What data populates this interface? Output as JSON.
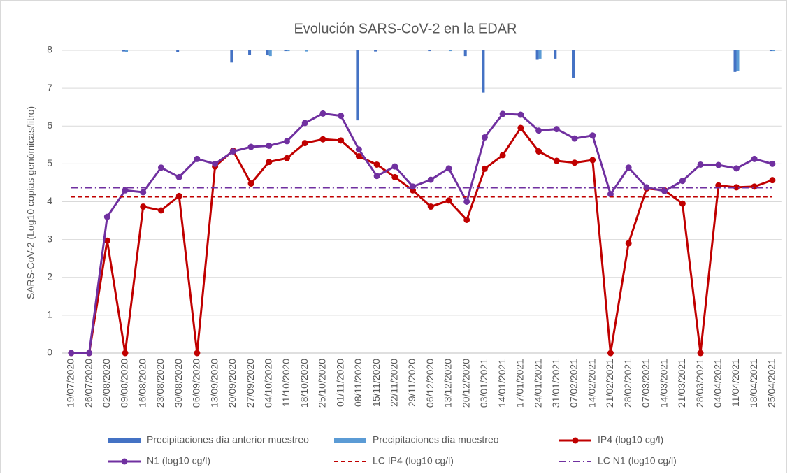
{
  "chart_data": {
    "type": "line",
    "title": "Evolución SARS-CoV-2 en la EDAR",
    "y_label": "SARS-CoV-2 (Log10 copias genómicas/litro)",
    "categories": [
      "19/07/2020",
      "26/07/2020",
      "02/08/2020",
      "09/08/2020",
      "16/08/2020",
      "23/08/2020",
      "30/08/2020",
      "06/09/2020",
      "13/09/2020",
      "20/09/2020",
      "27/09/2020",
      "04/10/2020",
      "11/10/2020",
      "18/10/2020",
      "25/10/2020",
      "01/11/2020",
      "08/11/2020",
      "15/11/2020",
      "22/11/2020",
      "29/11/2020",
      "06/12/2020",
      "13/12/2020",
      "20/12/2020",
      "03/01/2021",
      "14/01/2021",
      "17/01/2021",
      "24/01/2021",
      "31/01/2021",
      "07/02/2021",
      "14/02/2021",
      "21/02/2021",
      "28/02/2021",
      "07/03/2021",
      "14/03/2021",
      "21/03/2021",
      "28/03/2021",
      "04/04/2021",
      "11/04/2021",
      "18/04/2021",
      "25/04/2021"
    ],
    "ylim": [
      0,
      8
    ],
    "yticks": [
      0,
      1,
      2,
      3,
      4,
      5,
      6,
      7,
      8
    ],
    "grid": true,
    "y2lim": [
      0,
      8
    ],
    "y2_inverted": true,
    "series": [
      {
        "name": "Precipitaciones día anterior muestreo",
        "type": "bar",
        "axis": "y2",
        "color": "#4472c4",
        "values": [
          0,
          0,
          0,
          0.03,
          0,
          0,
          0.05,
          0,
          0,
          0.32,
          0.12,
          0.13,
          0.02,
          0,
          0,
          0,
          1.85,
          0.03,
          0,
          0,
          0.02,
          0,
          0.15,
          1.12,
          0,
          0,
          0.25,
          0.22,
          0.72,
          0,
          0,
          0,
          0,
          0,
          0,
          0,
          0,
          0.57,
          0,
          0.02
        ]
      },
      {
        "name": "Precipitaciones día muestreo",
        "type": "bar",
        "axis": "y2",
        "color": "#5b9bd5",
        "values": [
          0,
          0,
          0,
          0.05,
          0,
          0,
          0,
          0,
          0,
          0,
          0,
          0.15,
          0.02,
          0.03,
          0,
          0,
          0,
          0,
          0,
          0,
          0,
          0.02,
          0,
          0,
          0,
          0,
          0.22,
          0,
          0,
          0,
          0,
          0,
          0,
          0,
          0,
          0,
          0,
          0.55,
          0,
          0.02
        ]
      },
      {
        "name": "IP4 (log10 cg/l)",
        "type": "line",
        "marker": true,
        "color": "#c00000",
        "values": [
          0,
          0,
          2.97,
          0,
          3.87,
          3.77,
          4.15,
          0,
          4.93,
          5.35,
          4.48,
          5.05,
          5.15,
          5.55,
          5.65,
          5.62,
          5.2,
          4.98,
          4.65,
          4.3,
          3.87,
          4.03,
          3.52,
          4.87,
          5.23,
          5.95,
          5.33,
          5.08,
          5.03,
          5.1,
          0,
          2.9,
          4.35,
          4.3,
          3.95,
          0,
          4.43,
          4.38,
          4.4,
          4.57
        ]
      },
      {
        "name": "N1 (log10 cg/l)",
        "type": "line",
        "marker": true,
        "color": "#7030a0",
        "values": [
          0,
          0,
          3.6,
          4.3,
          4.25,
          4.9,
          4.65,
          5.13,
          5.0,
          5.33,
          5.45,
          5.48,
          5.6,
          6.08,
          6.33,
          6.27,
          5.38,
          4.68,
          4.93,
          4.4,
          4.58,
          4.88,
          4.0,
          5.7,
          6.32,
          6.3,
          5.88,
          5.92,
          5.67,
          5.75,
          4.2,
          4.9,
          4.38,
          4.28,
          4.55,
          4.98,
          4.97,
          4.88,
          5.13,
          5.0
        ]
      },
      {
        "name": "LC IP4 (log10 cg/l)",
        "type": "line",
        "line_style": "dashed",
        "color": "#c00000",
        "values": [
          4.13,
          4.13,
          4.13,
          4.13,
          4.13,
          4.13,
          4.13,
          4.13,
          4.13,
          4.13,
          4.13,
          4.13,
          4.13,
          4.13,
          4.13,
          4.13,
          4.13,
          4.13,
          4.13,
          4.13,
          4.13,
          4.13,
          4.13,
          4.13,
          4.13,
          4.13,
          4.13,
          4.13,
          4.13,
          4.13,
          4.13,
          4.13,
          4.13,
          4.13,
          4.13,
          4.13,
          4.13,
          4.13,
          4.13,
          4.13
        ]
      },
      {
        "name": "LC N1 (log10 cg/l)",
        "type": "line",
        "line_style": "dashdot",
        "color": "#7030a0",
        "values": [
          4.37,
          4.37,
          4.37,
          4.37,
          4.37,
          4.37,
          4.37,
          4.37,
          4.37,
          4.37,
          4.37,
          4.37,
          4.37,
          4.37,
          4.37,
          4.37,
          4.37,
          4.37,
          4.37,
          4.37,
          4.37,
          4.37,
          4.37,
          4.37,
          4.37,
          4.37,
          4.37,
          4.37,
          4.37,
          4.37,
          4.37,
          4.37,
          4.37,
          4.37,
          4.37,
          4.37,
          4.37,
          4.37,
          4.37,
          4.37
        ]
      }
    ]
  }
}
